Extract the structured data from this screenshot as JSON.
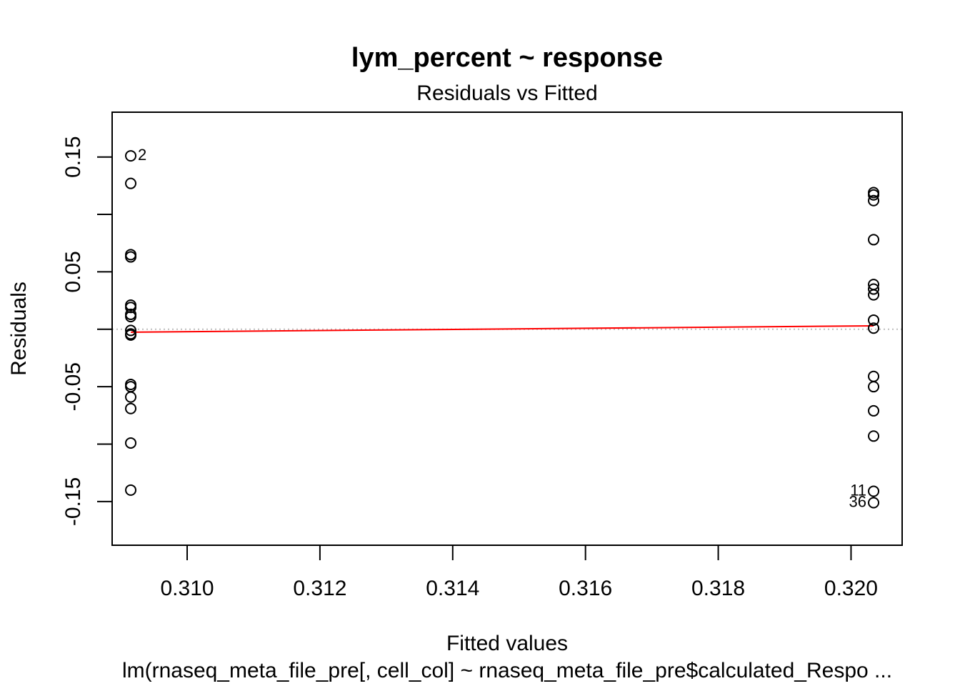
{
  "chart_data": {
    "type": "scatter",
    "title": "lym_percent ~ response",
    "subtitle": "Residuals vs Fitted",
    "xlabel": "Fitted values",
    "ylabel": "Residuals",
    "caption": "lm(rnaseq_meta_file_pre[, cell_col] ~ rnaseq_meta_file_pre$calculated_Respo ...",
    "xlim": [
      0.30887,
      0.32077
    ],
    "ylim": [
      -0.188,
      0.189
    ],
    "x_ticks": [
      0.31,
      0.312,
      0.314,
      0.316,
      0.318,
      0.32
    ],
    "x_tick_labels": [
      "0.310",
      "0.312",
      "0.314",
      "0.316",
      "0.318",
      "0.320"
    ],
    "y_ticks": [
      -0.15,
      -0.1,
      -0.05,
      0.0,
      0.05,
      0.1,
      0.15
    ],
    "y_tick_labels": [
      "-0.15",
      "",
      "-0.05",
      "",
      "0.05",
      "",
      "0.15"
    ],
    "grid": false,
    "reference_line": {
      "y": 0,
      "color": "#bebebe",
      "style": "dotted"
    },
    "points": [
      {
        "x": 0.30915,
        "y": 0.151,
        "label": "2"
      },
      {
        "x": 0.30915,
        "y": 0.127
      },
      {
        "x": 0.30915,
        "y": 0.065
      },
      {
        "x": 0.30915,
        "y": 0.063
      },
      {
        "x": 0.30915,
        "y": 0.021
      },
      {
        "x": 0.30915,
        "y": 0.019
      },
      {
        "x": 0.30915,
        "y": 0.013
      },
      {
        "x": 0.30915,
        "y": 0.011
      },
      {
        "x": 0.30915,
        "y": -0.001
      },
      {
        "x": 0.30915,
        "y": -0.004
      },
      {
        "x": 0.30915,
        "y": -0.005
      },
      {
        "x": 0.30915,
        "y": -0.048
      },
      {
        "x": 0.30915,
        "y": -0.05
      },
      {
        "x": 0.30915,
        "y": -0.059
      },
      {
        "x": 0.30915,
        "y": -0.069
      },
      {
        "x": 0.30915,
        "y": -0.099
      },
      {
        "x": 0.30915,
        "y": -0.14
      },
      {
        "x": 0.32034,
        "y": 0.119
      },
      {
        "x": 0.32034,
        "y": 0.117
      },
      {
        "x": 0.32034,
        "y": 0.112
      },
      {
        "x": 0.32034,
        "y": 0.078
      },
      {
        "x": 0.32034,
        "y": 0.039
      },
      {
        "x": 0.32034,
        "y": 0.035
      },
      {
        "x": 0.32034,
        "y": 0.03
      },
      {
        "x": 0.32034,
        "y": 0.008
      },
      {
        "x": 0.32034,
        "y": 0.001
      },
      {
        "x": 0.32034,
        "y": -0.041
      },
      {
        "x": 0.32034,
        "y": -0.05
      },
      {
        "x": 0.32034,
        "y": -0.071
      },
      {
        "x": 0.32034,
        "y": -0.093
      },
      {
        "x": 0.32034,
        "y": -0.141,
        "label": "11"
      },
      {
        "x": 0.32034,
        "y": -0.151,
        "label": "36"
      }
    ],
    "smooth_line": {
      "color": "#ff0000",
      "points": [
        {
          "x": 0.30915,
          "y": -0.0025
        },
        {
          "x": 0.32034,
          "y": 0.003
        }
      ]
    }
  }
}
